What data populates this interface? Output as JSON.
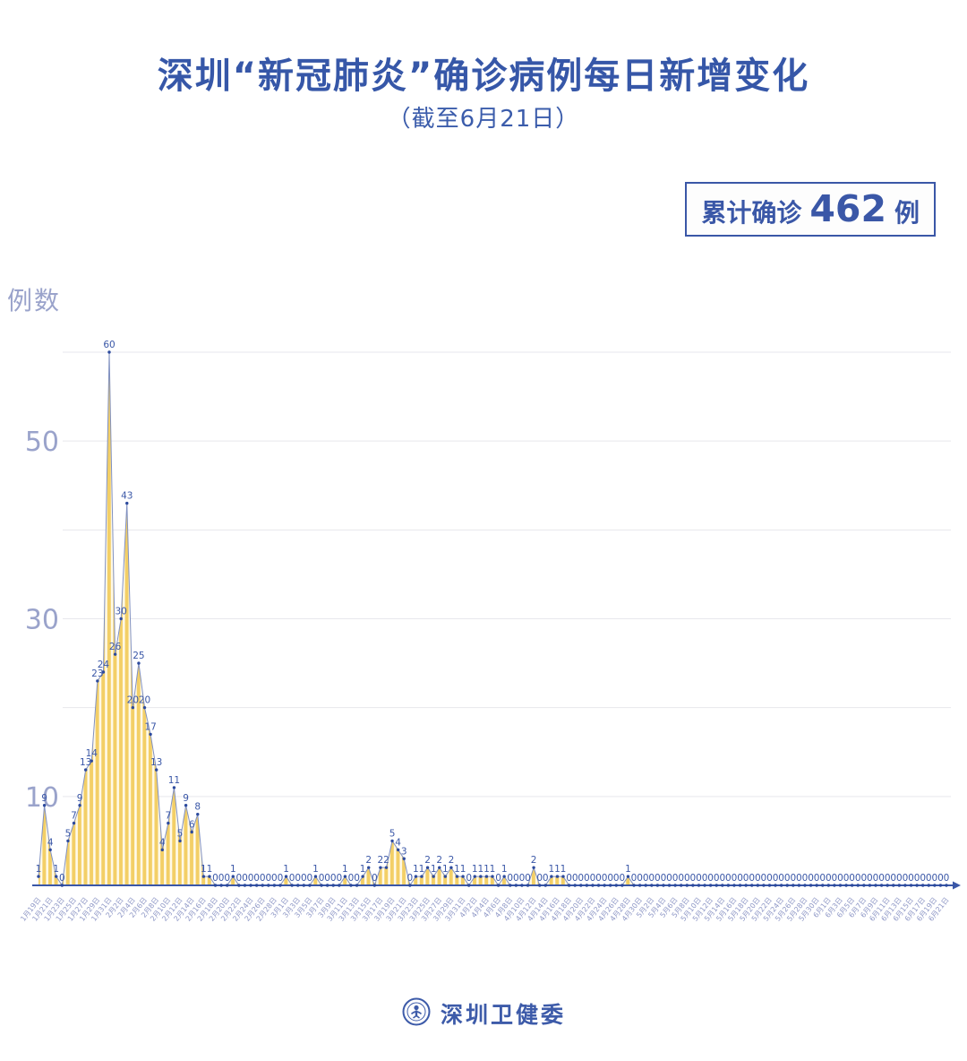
{
  "title": "深圳“新冠肺炎”确诊病例每日新增变化",
  "subtitle": "（截至6月21日）",
  "badge": {
    "prefix": "累计确诊",
    "value": "462",
    "suffix": "例"
  },
  "y_axis_label": "例数",
  "footer": {
    "org_name": "深圳卫健委"
  },
  "chart_data": {
    "type": "area",
    "title": "深圳“新冠肺炎”确诊病例每日新增变化（截至6月21日）",
    "ylabel": "例数",
    "yticks": [
      10,
      30,
      50
    ],
    "gridline_values": [
      10,
      20,
      30,
      40,
      50,
      60
    ],
    "ylim": [
      0,
      62
    ],
    "grid": true,
    "x_label_every": 2,
    "cumulative_total": 462,
    "colors": {
      "title_blue": "#3657a8",
      "area_stripe_yellow": "#f3cf66",
      "area_stripe_light": "#fffaea",
      "line": "#8191c1",
      "marker": "#2c4a9d",
      "value_label": "#3a57a7",
      "axis": "#3a57a7",
      "grid": "#e7e7ec",
      "tick_text": "#9aa3cb",
      "date_text": "#9099c7"
    },
    "dates": [
      "1月19日",
      "1月20日",
      "1月21日",
      "1月22日",
      "1月23日",
      "1月24日",
      "1月25日",
      "1月26日",
      "1月27日",
      "1月28日",
      "1月29日",
      "1月30日",
      "1月31日",
      "2月1日",
      "2月2日",
      "2月3日",
      "2月4日",
      "2月5日",
      "2月6日",
      "2月7日",
      "2月8日",
      "2月9日",
      "2月10日",
      "2月11日",
      "2月12日",
      "2月13日",
      "2月14日",
      "2月15日",
      "2月16日",
      "2月17日",
      "2月18日",
      "2月19日",
      "2月20日",
      "2月21日",
      "2月22日",
      "2月23日",
      "2月24日",
      "2月25日",
      "2月26日",
      "2月27日",
      "2月28日",
      "2月29日",
      "3月1日",
      "3月2日",
      "3月3日",
      "3月4日",
      "3月5日",
      "3月6日",
      "3月7日",
      "3月8日",
      "3月9日",
      "3月10日",
      "3月11日",
      "3月12日",
      "3月13日",
      "3月14日",
      "3月15日",
      "3月16日",
      "3月17日",
      "3月18日",
      "3月19日",
      "3月20日",
      "3月21日",
      "3月22日",
      "3月23日",
      "3月24日",
      "3月25日",
      "3月26日",
      "3月27日",
      "3月28日",
      "3月29日",
      "3月30日",
      "3月31日",
      "4月1日",
      "4月2日",
      "4月3日",
      "4月4日",
      "4月5日",
      "4月6日",
      "4月7日",
      "4月8日",
      "4月9日",
      "4月10日",
      "4月11日",
      "4月12日",
      "4月13日",
      "4月14日",
      "4月15日",
      "4月16日",
      "4月17日",
      "4月18日",
      "4月19日",
      "4月20日",
      "4月21日",
      "4月22日",
      "4月23日",
      "4月24日",
      "4月25日",
      "4月26日",
      "4月27日",
      "4月28日",
      "4月29日",
      "4月30日",
      "5月1日",
      "5月2日",
      "5月3日",
      "5月4日",
      "5月5日",
      "5月6日",
      "5月7日",
      "5月8日",
      "5月9日",
      "5月10日",
      "5月11日",
      "5月12日",
      "5月13日",
      "5月14日",
      "5月15日",
      "5月16日",
      "5月17日",
      "5月18日",
      "5月19日",
      "5月20日",
      "5月21日",
      "5月22日",
      "5月23日",
      "5月24日",
      "5月25日",
      "5月26日",
      "5月27日",
      "5月28日",
      "5月29日",
      "5月30日",
      "5月31日",
      "6月1日",
      "6月2日",
      "6月3日",
      "6月4日",
      "6月5日",
      "6月6日",
      "6月7日",
      "6月8日",
      "6月9日",
      "6月10日",
      "6月11日",
      "6月12日",
      "6月13日",
      "6月14日",
      "6月15日",
      "6月16日",
      "6月17日",
      "6月18日",
      "6月19日",
      "6月20日",
      "6月21日"
    ],
    "values": [
      1,
      9,
      4,
      1,
      0,
      5,
      7,
      9,
      13,
      14,
      23,
      24,
      60,
      26,
      30,
      43,
      20,
      25,
      20,
      17,
      13,
      4,
      7,
      11,
      5,
      9,
      6,
      8,
      1,
      1,
      0,
      0,
      0,
      1,
      0,
      0,
      0,
      0,
      0,
      0,
      0,
      0,
      1,
      0,
      0,
      0,
      0,
      1,
      0,
      0,
      0,
      0,
      1,
      0,
      0,
      1,
      2,
      0,
      2,
      2,
      5,
      4,
      3,
      0,
      1,
      1,
      2,
      1,
      2,
      1,
      2,
      1,
      1,
      0,
      1,
      1,
      1,
      1,
      0,
      1,
      0,
      0,
      0,
      0,
      2,
      0,
      0,
      1,
      1,
      1,
      0,
      0,
      0,
      0,
      0,
      0,
      0,
      0,
      0,
      0,
      1,
      0,
      0,
      0,
      0,
      0,
      0,
      0,
      0,
      0,
      0,
      0,
      0,
      0,
      0,
      0,
      0,
      0,
      0,
      0,
      0,
      0,
      0,
      0,
      0,
      0,
      0,
      0,
      0,
      0,
      0,
      0,
      0,
      0,
      0,
      0,
      0,
      0,
      0,
      0,
      0,
      0,
      0,
      0,
      0,
      0,
      0,
      0,
      0,
      0,
      0,
      0,
      0,
      0,
      0
    ]
  }
}
